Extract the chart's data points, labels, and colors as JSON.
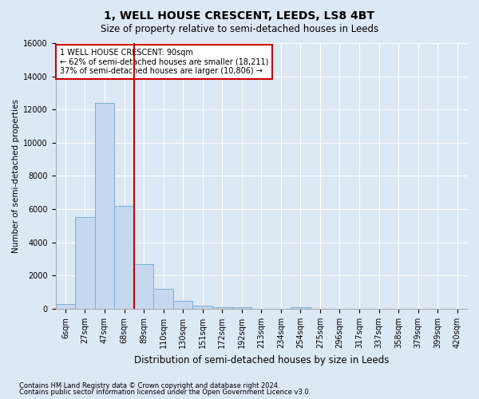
{
  "title": "1, WELL HOUSE CRESCENT, LEEDS, LS8 4BT",
  "subtitle": "Size of property relative to semi-detached houses in Leeds",
  "xlabel": "Distribution of semi-detached houses by size in Leeds",
  "ylabel": "Number of semi-detached properties",
  "bar_categories": [
    "6sqm",
    "27sqm",
    "47sqm",
    "68sqm",
    "89sqm",
    "110sqm",
    "130sqm",
    "151sqm",
    "172sqm",
    "192sqm",
    "213sqm",
    "234sqm",
    "254sqm",
    "275sqm",
    "296sqm",
    "317sqm",
    "337sqm",
    "358sqm",
    "379sqm",
    "399sqm",
    "420sqm"
  ],
  "bar_values": [
    300,
    5500,
    12400,
    6200,
    2700,
    1200,
    500,
    200,
    100,
    100,
    0,
    0,
    100,
    0,
    0,
    0,
    0,
    0,
    0,
    0,
    0
  ],
  "bar_color": "#c5d8ee",
  "bar_edgecolor": "#7aafd4",
  "vline_x_label": "89sqm",
  "vline_color": "#cc0000",
  "ylim": [
    0,
    16000
  ],
  "yticks": [
    0,
    2000,
    4000,
    6000,
    8000,
    10000,
    12000,
    14000,
    16000
  ],
  "annotation_title": "1 WELL HOUSE CRESCENT: 90sqm",
  "annotation_line1": "← 62% of semi-detached houses are smaller (18,211)",
  "annotation_line2": "37% of semi-detached houses are larger (10,806) →",
  "annotation_box_facecolor": "#ffffff",
  "annotation_box_edgecolor": "#cc0000",
  "footnote1": "Contains HM Land Registry data © Crown copyright and database right 2024.",
  "footnote2": "Contains public sector information licensed under the Open Government Licence v3.0.",
  "fig_facecolor": "#dde8f5",
  "ax_facecolor": "#dde8f5",
  "grid_color": "#ffffff",
  "title_fontsize": 10,
  "subtitle_fontsize": 8.5,
  "tick_fontsize": 7,
  "ylabel_fontsize": 7.5,
  "xlabel_fontsize": 8.5,
  "footnote_fontsize": 6
}
